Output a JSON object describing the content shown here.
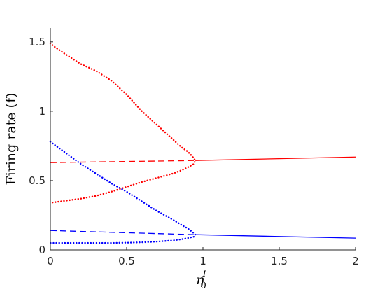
{
  "chart_data": {
    "type": "line",
    "xlabel": "η",
    "xlabel_sub": "0",
    "xlabel_sup": "I",
    "ylabel": "Firing rate (f)",
    "xlim": [
      0,
      2
    ],
    "ylim": [
      0,
      1.6
    ],
    "xticks": [
      0,
      0.5,
      1,
      1.5,
      2
    ],
    "xtick_labels": [
      "0",
      "0.5",
      "1",
      "1.5",
      "2"
    ],
    "yticks": [
      0,
      0.5,
      1,
      1.5
    ],
    "ytick_labels": [
      "0",
      "0.5",
      "1",
      "1.5"
    ],
    "grid": false,
    "box": false,
    "series": [
      {
        "color": "#ff0000",
        "style": "dashed",
        "x": [
          0,
          0.95
        ],
        "y": [
          0.63,
          0.645
        ]
      },
      {
        "color": "#ff0000",
        "style": "solid",
        "x": [
          0.95,
          2
        ],
        "y": [
          0.645,
          0.67
        ]
      },
      {
        "color": "#ff0000",
        "style": "dotted",
        "x": [
          0,
          0.02,
          0.1,
          0.2,
          0.3,
          0.4,
          0.5,
          0.6,
          0.7,
          0.8,
          0.86,
          0.9,
          0.93,
          0.95,
          0.94,
          0.9,
          0.85,
          0.8,
          0.7,
          0.6,
          0.5,
          0.4,
          0.3,
          0.2,
          0.1,
          0
        ],
        "y": [
          1.49,
          1.47,
          1.41,
          1.34,
          1.29,
          1.22,
          1.12,
          1.0,
          0.9,
          0.8,
          0.74,
          0.71,
          0.675,
          0.645,
          0.62,
          0.595,
          0.57,
          0.55,
          0.52,
          0.49,
          0.455,
          0.42,
          0.39,
          0.37,
          0.355,
          0.34
        ]
      },
      {
        "color": "#0000ff",
        "style": "dashed",
        "x": [
          0,
          0.95
        ],
        "y": [
          0.14,
          0.11
        ]
      },
      {
        "color": "#0000ff",
        "style": "solid",
        "x": [
          0.95,
          2
        ],
        "y": [
          0.11,
          0.085
        ]
      },
      {
        "color": "#0000ff",
        "style": "dotted",
        "x": [
          0,
          0.05,
          0.1,
          0.2,
          0.3,
          0.4,
          0.5,
          0.6,
          0.7,
          0.8,
          0.86,
          0.9,
          0.93,
          0.95,
          0.94,
          0.9,
          0.85,
          0.8,
          0.7,
          0.6,
          0.5,
          0.4,
          0.3,
          0.2,
          0.1,
          0
        ],
        "y": [
          0.78,
          0.74,
          0.7,
          0.62,
          0.55,
          0.48,
          0.42,
          0.35,
          0.28,
          0.22,
          0.18,
          0.155,
          0.13,
          0.11,
          0.095,
          0.085,
          0.075,
          0.068,
          0.06,
          0.055,
          0.052,
          0.05,
          0.05,
          0.05,
          0.05,
          0.05
        ]
      }
    ]
  }
}
